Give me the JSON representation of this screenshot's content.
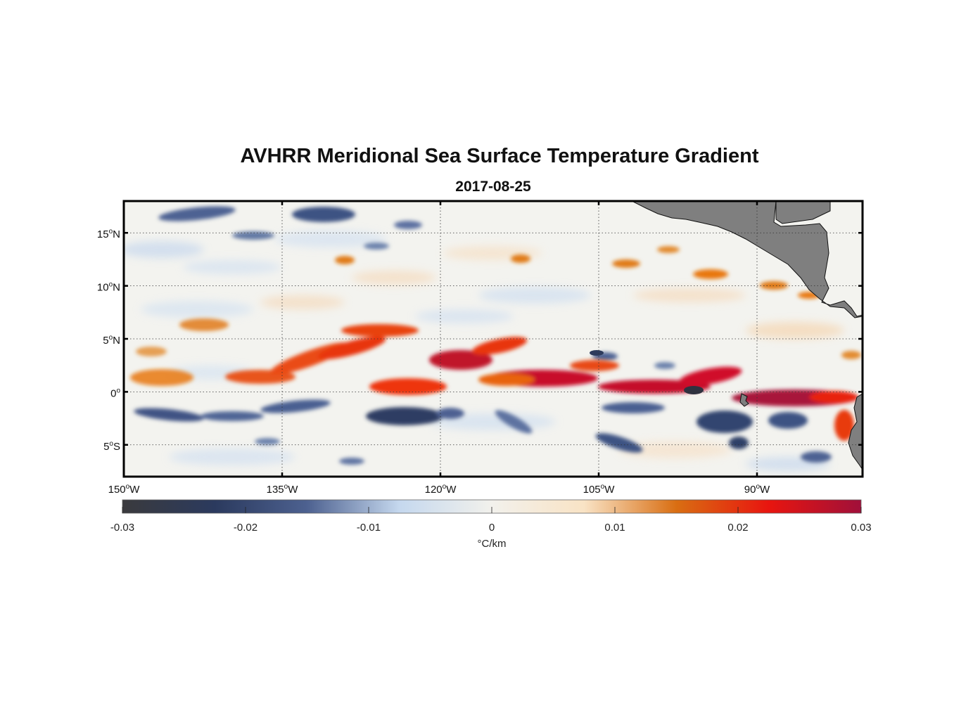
{
  "title": "AVHRR Meridional Sea Surface Temperature Gradient",
  "subtitle": "2017-08-25",
  "map": {
    "lon_range": [
      -150,
      -80
    ],
    "lat_range": [
      -8,
      18
    ],
    "lon_ticks": [
      {
        "value": -150,
        "deg": "150",
        "hemi": "W"
      },
      {
        "value": -135,
        "deg": "135",
        "hemi": "W"
      },
      {
        "value": -120,
        "deg": "120",
        "hemi": "W"
      },
      {
        "value": -105,
        "deg": "105",
        "hemi": "W"
      },
      {
        "value": -90,
        "deg": "90",
        "hemi": "W"
      }
    ],
    "lat_ticks": [
      {
        "value": 15,
        "deg": "15",
        "hemi": "N"
      },
      {
        "value": 10,
        "deg": "10",
        "hemi": "N"
      },
      {
        "value": 5,
        "deg": "5",
        "hemi": "N"
      },
      {
        "value": 0,
        "deg": "0",
        "hemi": ""
      },
      {
        "value": -5,
        "deg": "5",
        "hemi": "S"
      }
    ],
    "land_color": "#7f7f7f"
  },
  "colorbar": {
    "min": -0.03,
    "max": 0.03,
    "ticks": [
      {
        "value": -0.03,
        "label": "-0.03"
      },
      {
        "value": -0.02,
        "label": "-0.02"
      },
      {
        "value": -0.01,
        "label": "-0.01"
      },
      {
        "value": 0,
        "label": "0"
      },
      {
        "value": 0.01,
        "label": "0.01"
      },
      {
        "value": 0.02,
        "label": "0.02"
      },
      {
        "value": 0.03,
        "label": "0.03"
      }
    ],
    "unit_label": "°C/km",
    "stops": [
      "#3a3a3d",
      "#2b3a5e",
      "#4d6190",
      "#c5d8ee",
      "#f2f1ec",
      "#f9e3c5",
      "#d96e12",
      "#e8150f",
      "#a0103a"
    ]
  }
}
